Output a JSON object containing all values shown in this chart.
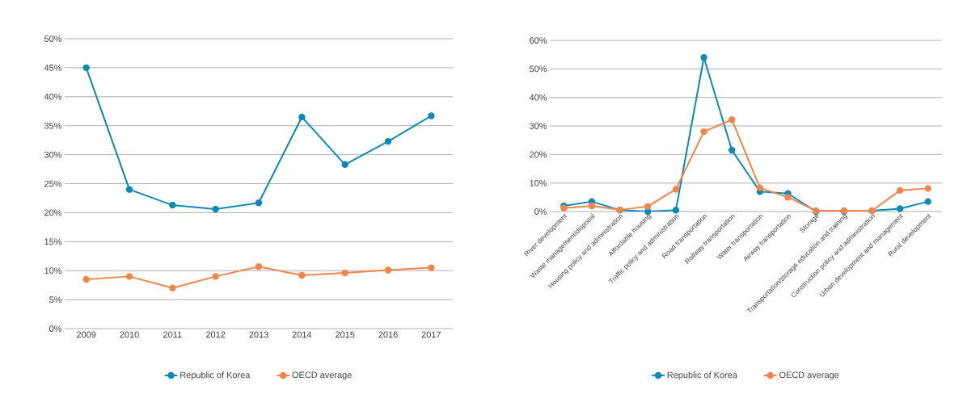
{
  "chart_data": [
    {
      "type": "line",
      "categories": [
        "2009",
        "2010",
        "2011",
        "2012",
        "2013",
        "2014",
        "2015",
        "2016",
        "2017"
      ],
      "series": [
        {
          "name": "Republic of Korea",
          "color": "#0a8ab8",
          "values": [
            45,
            24,
            21.3,
            20.6,
            21.7,
            36.5,
            28.3,
            32.3,
            36.7
          ]
        },
        {
          "name": "OECD average",
          "color": "#f4854a",
          "values": [
            8.5,
            9,
            7,
            9,
            10.7,
            9.2,
            9.6,
            10.1,
            10.5
          ]
        }
      ],
      "ylim": [
        0,
        50
      ],
      "yticks": [
        {
          "value": 0,
          "label": "0%"
        },
        {
          "value": 5,
          "label": "5%"
        },
        {
          "value": 10,
          "label": "10%"
        },
        {
          "value": 15,
          "label": "15%"
        },
        {
          "value": 20,
          "label": "20%"
        },
        {
          "value": 25,
          "label": "25%"
        },
        {
          "value": 30,
          "label": "30%"
        },
        {
          "value": 35,
          "label": "35%"
        },
        {
          "value": 40,
          "label": "40%"
        },
        {
          "value": 45,
          "label": "45%"
        },
        {
          "value": 50,
          "label": "50%"
        }
      ],
      "grid": "y",
      "legend": "bottom",
      "marker": "circle",
      "line_style": "solid"
    },
    {
      "type": "line",
      "categories": [
        "River development",
        "Waste management/disposal",
        "Housing policy and administration",
        "Affordable housing",
        "Traffic policy and administration",
        "Road transportation",
        "Railway transportation",
        "Water transportation",
        "Airway transportation",
        "Storage",
        "Transportation/storage education and training",
        "Construction policy and administration",
        "Urban development and management",
        "Rural development"
      ],
      "series": [
        {
          "name": "Republic of Korea",
          "color": "#0a8ab8",
          "values": [
            2,
            3.5,
            0.5,
            0,
            0.5,
            54,
            21.5,
            7,
            6.3,
            0,
            0,
            0.3,
            1,
            3.5
          ]
        },
        {
          "name": "OECD average",
          "color": "#f4854a",
          "values": [
            1.2,
            2,
            0.6,
            1.8,
            7.8,
            28,
            32.2,
            8.3,
            5,
            0.3,
            0.3,
            0.3,
            7.4,
            8.1
          ]
        }
      ],
      "ylim": [
        0,
        60
      ],
      "yticks": [
        {
          "value": 0,
          "label": "0%"
        },
        {
          "value": 10,
          "label": "10%"
        },
        {
          "value": 20,
          "label": "20%"
        },
        {
          "value": 30,
          "label": "30%"
        },
        {
          "value": 40,
          "label": "40%"
        },
        {
          "value": 50,
          "label": "50%"
        },
        {
          "value": 60,
          "label": "60%"
        }
      ],
      "grid": "y",
      "legend": "bottom",
      "marker": "circle",
      "line_style": "solid"
    }
  ]
}
